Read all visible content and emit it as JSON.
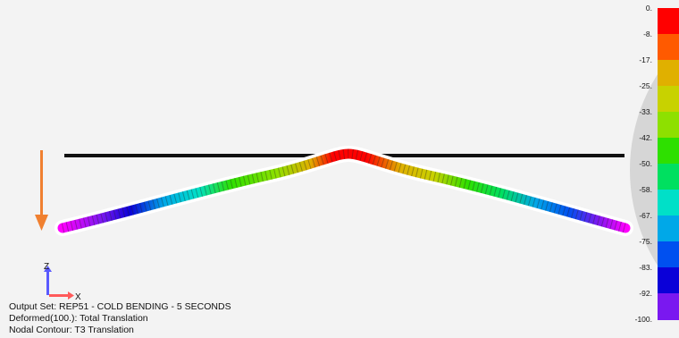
{
  "info": {
    "output_set": "Output Set: REP51 - COLD BENDING - 5 SECONDS",
    "deformed": "Deformed(100.): Total Translation",
    "contour": "Nodal Contour: T3 Translation"
  },
  "axes_triad": {
    "z_label": "Z",
    "x_label": "X"
  },
  "legend": {
    "labels": [
      "0.",
      "-8.",
      "-17.",
      "-25.",
      "-33.",
      "-42.",
      "-50.",
      "-58.",
      "-67.",
      "-75.",
      "-83.",
      "-92.",
      "-100."
    ],
    "colors": [
      "#ff0000",
      "#ff5a00",
      "#e0b000",
      "#c8d200",
      "#8ee000",
      "#2ee000",
      "#00e060",
      "#00e0c8",
      "#00a8e8",
      "#0050f0",
      "#0a00d8",
      "#7a18f0",
      "#ff00ff"
    ]
  },
  "colors": {
    "background": "#f3f3f3",
    "arrow": "#f08030",
    "reference_line": "#111111"
  }
}
